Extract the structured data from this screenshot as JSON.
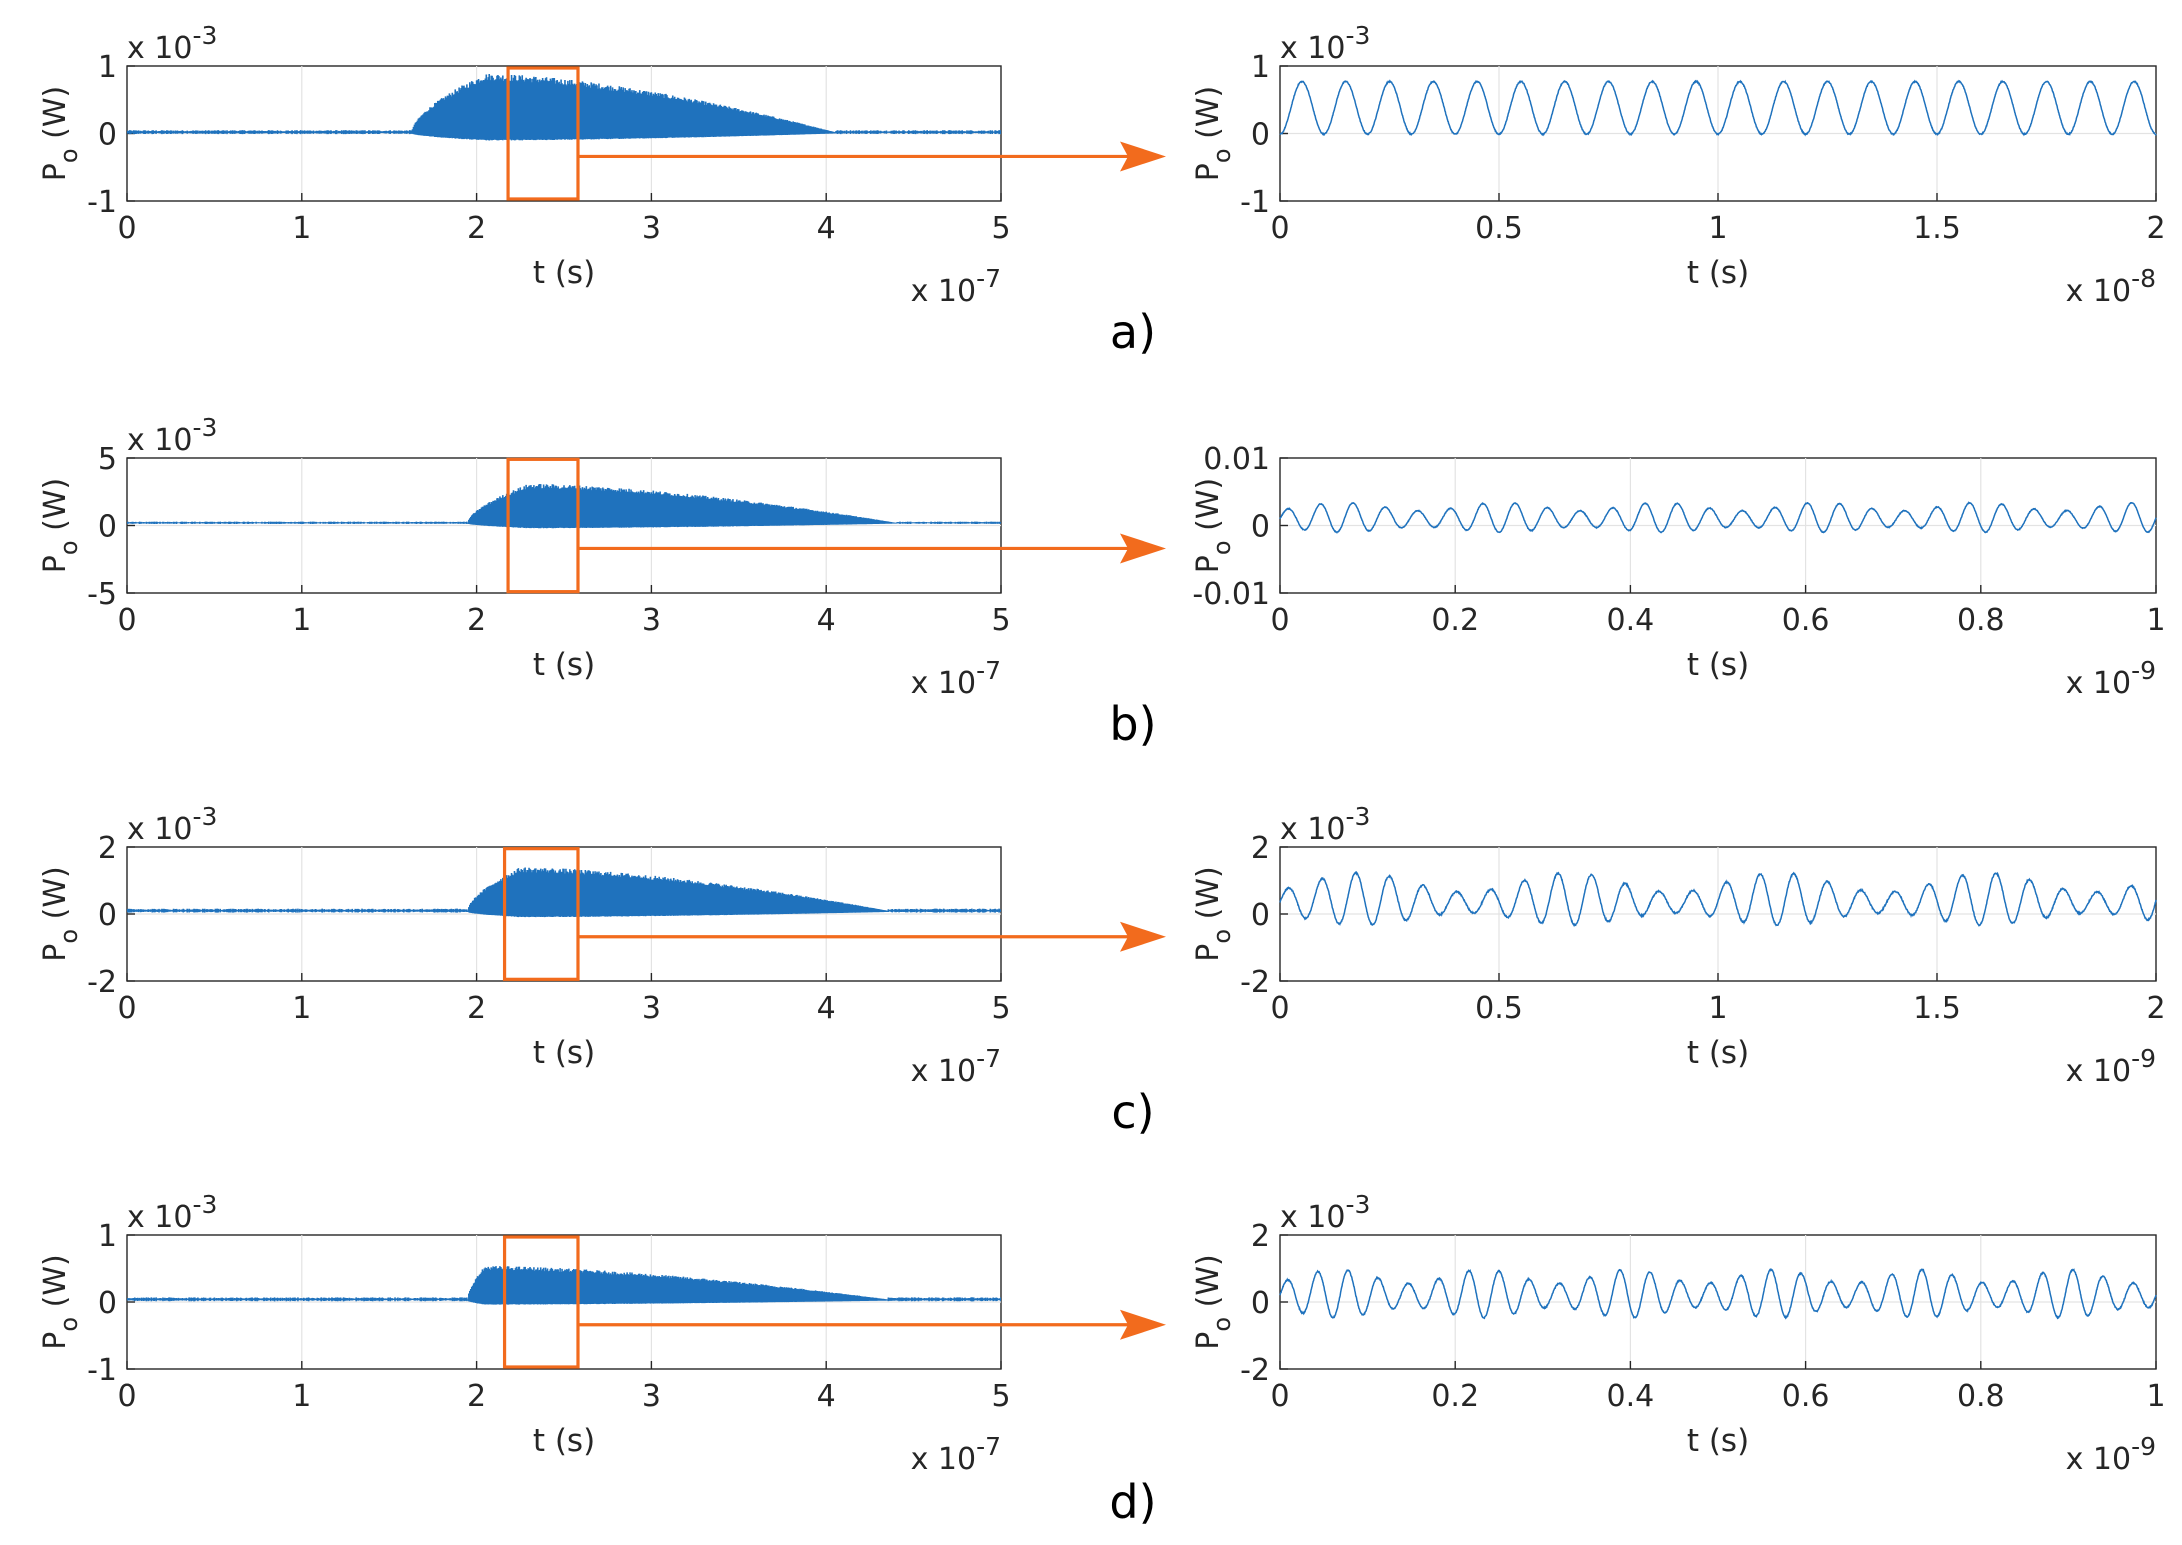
{
  "figure": {
    "colors": {
      "signal": "#1f72bd",
      "signal_light": "#8fb8dd",
      "zoom_box": "#f26b1d",
      "axis": "#262626",
      "grid": "#e3e3e3"
    }
  },
  "chart_data": [
    {
      "id": "a",
      "panel_label": "a)",
      "left": {
        "type": "line",
        "xlabel": "t (s)",
        "ylabel_main": "P",
        "ylabel_sub": "o",
        "ylabel_unit": " (W)",
        "xlim": [
          0,
          5
        ],
        "ylim": [
          -1,
          1
        ],
        "xticks": [
          "0",
          "1",
          "2",
          "3",
          "4",
          "5"
        ],
        "xtick_values": [
          0,
          1,
          2,
          3,
          4,
          5
        ],
        "yticks": [
          "-1",
          "0",
          "1"
        ],
        "ytick_values": [
          -1,
          0,
          1
        ],
        "x_multiplier": "x 10",
        "x_exponent": "-7",
        "y_multiplier": "x 10",
        "y_exponent": "-3",
        "signal": {
          "onset": 1.63,
          "peak_time": 2.05,
          "peak_max": 0.87,
          "end": 4.05,
          "baseline": 0.02,
          "noise": 0.02
        },
        "zoom_window": {
          "x": [
            2.18,
            2.58
          ],
          "y": [
            -0.97,
            0.97
          ]
        }
      },
      "right": {
        "type": "line",
        "xlabel": "t (s)",
        "ylabel_main": "P",
        "ylabel_sub": "o",
        "ylabel_unit": " (W)",
        "xlim": [
          0,
          2
        ],
        "ylim": [
          -1,
          1
        ],
        "xticks": [
          "0",
          "0.5",
          "1",
          "1.5",
          "2"
        ],
        "xtick_values": [
          0,
          0.5,
          1,
          1.5,
          2
        ],
        "yticks": [
          "-1",
          "0",
          "1"
        ],
        "ytick_values": [
          -1,
          0,
          1
        ],
        "x_multiplier": "x 10",
        "x_exponent": "-8",
        "y_multiplier": "x 10",
        "y_exponent": "-3",
        "signal": {
          "kind": "periodic",
          "cycles": 20,
          "offset": 0.38,
          "amplitude": 0.39
        }
      }
    },
    {
      "id": "b",
      "panel_label": "b)",
      "left": {
        "type": "line",
        "xlabel": "t (s)",
        "ylabel_main": "P",
        "ylabel_sub": "o",
        "ylabel_unit": " (W)",
        "xlim": [
          0,
          5
        ],
        "ylim": [
          -5,
          5
        ],
        "xticks": [
          "0",
          "1",
          "2",
          "3",
          "4",
          "5"
        ],
        "xtick_values": [
          0,
          1,
          2,
          3,
          4,
          5
        ],
        "yticks": [
          "-5",
          "0",
          "5"
        ],
        "ytick_values": [
          -5,
          0,
          5
        ],
        "x_multiplier": "x 10",
        "x_exponent": "-7",
        "y_multiplier": "x 10",
        "y_exponent": "-3",
        "signal": {
          "onset": 1.95,
          "peak_time": 2.3,
          "peak_max": 2.9,
          "end": 4.4,
          "baseline": 0.2,
          "noise": 0.06
        },
        "zoom_window": {
          "x": [
            2.18,
            2.58
          ],
          "y": [
            -4.9,
            4.9
          ]
        }
      },
      "right": {
        "type": "line",
        "xlabel": "t (s)",
        "ylabel_main": "P",
        "ylabel_sub": "o",
        "ylabel_unit": " (W)",
        "xlim": [
          0,
          1
        ],
        "ylim": [
          -0.01,
          0.01
        ],
        "xticks": [
          "0",
          "0.2",
          "0.4",
          "0.6",
          "0.8",
          "1"
        ],
        "xtick_values": [
          0,
          0.2,
          0.4,
          0.6,
          0.8,
          1
        ],
        "yticks": [
          "-0.01",
          "0",
          "0.01"
        ],
        "ytick_values": [
          -0.01,
          0,
          0.01
        ],
        "x_multiplier": "x 10",
        "x_exponent": "-9",
        "signal": {
          "kind": "beating",
          "cycles": 27,
          "beat_cycles": 5.5,
          "offset": 0.0012,
          "amplitude": 0.0022,
          "mod_depth": 0.45
        }
      }
    },
    {
      "id": "c",
      "panel_label": "c)",
      "left": {
        "type": "line",
        "xlabel": "t (s)",
        "ylabel_main": "P",
        "ylabel_sub": "o",
        "ylabel_unit": " (W)",
        "xlim": [
          0,
          5
        ],
        "ylim": [
          -2,
          2
        ],
        "xticks": [
          "0",
          "1",
          "2",
          "3",
          "4",
          "5"
        ],
        "xtick_values": [
          0,
          1,
          2,
          3,
          4,
          5
        ],
        "yticks": [
          "-2",
          "0",
          "2"
        ],
        "ytick_values": [
          -2,
          0,
          2
        ],
        "x_multiplier": "x 10",
        "x_exponent": "-7",
        "y_multiplier": "x 10",
        "y_exponent": "-3",
        "signal": {
          "onset": 1.95,
          "peak_time": 2.25,
          "peak_max": 1.3,
          "end": 4.35,
          "baseline": 0.1,
          "noise": 0.04
        },
        "zoom_window": {
          "x": [
            2.16,
            2.58
          ],
          "y": [
            -1.95,
            1.95
          ]
        }
      },
      "right": {
        "type": "line",
        "xlabel": "t (s)",
        "ylabel_main": "P",
        "ylabel_sub": "o",
        "ylabel_unit": " (W)",
        "xlim": [
          0,
          2
        ],
        "ylim": [
          -2,
          2
        ],
        "xticks": [
          "0",
          "0.5",
          "1",
          "1.5",
          "2"
        ],
        "xtick_values": [
          0,
          0.5,
          1,
          1.5,
          2
        ],
        "yticks": [
          "-2",
          "0",
          "2"
        ],
        "ytick_values": [
          -2,
          0,
          2
        ],
        "x_multiplier": "x 10",
        "x_exponent": "-9",
        "y_multiplier": "x 10",
        "y_exponent": "-3",
        "signal": {
          "kind": "beating",
          "cycles": 26,
          "beat_cycles": 4.2,
          "offset": 0.45,
          "amplitude": 0.78,
          "mod_depth": 0.6
        }
      }
    },
    {
      "id": "d",
      "panel_label": "d)",
      "left": {
        "type": "line",
        "xlabel": "t (s)",
        "ylabel_main": "P",
        "ylabel_sub": "o",
        "ylabel_unit": " (W)",
        "xlim": [
          0,
          5
        ],
        "ylim": [
          -1,
          1
        ],
        "xticks": [
          "0",
          "1",
          "2",
          "3",
          "4",
          "5"
        ],
        "xtick_values": [
          0,
          1,
          2,
          3,
          4,
          5
        ],
        "yticks": [
          "-1",
          "0",
          "1"
        ],
        "ytick_values": [
          -1,
          0,
          1
        ],
        "x_multiplier": "x 10",
        "x_exponent": "-7",
        "y_multiplier": "x 10",
        "y_exponent": "-3",
        "signal": {
          "onset": 1.95,
          "peak_time": 2.05,
          "peak_max": 0.5,
          "end": 4.35,
          "baseline": 0.04,
          "noise": 0.02
        },
        "zoom_window": {
          "x": [
            2.16,
            2.58
          ],
          "y": [
            -0.97,
            0.97
          ]
        }
      },
      "right": {
        "type": "line",
        "xlabel": "t (s)",
        "ylabel_main": "P",
        "ylabel_sub": "o",
        "ylabel_unit": " (W)",
        "xlim": [
          0,
          1
        ],
        "ylim": [
          -2,
          2
        ],
        "xticks": [
          "0",
          "0.2",
          "0.4",
          "0.6",
          "0.8",
          "1"
        ],
        "xtick_values": [
          0,
          0.2,
          0.4,
          0.6,
          0.8,
          1
        ],
        "yticks": [
          "-2",
          "0",
          "2"
        ],
        "ytick_values": [
          -2,
          0,
          2
        ],
        "x_multiplier": "x 10",
        "x_exponent": "-9",
        "y_multiplier": "x 10",
        "y_exponent": "-3",
        "signal": {
          "kind": "beating",
          "cycles": 29,
          "beat_cycles": 6,
          "offset": 0.25,
          "amplitude": 0.72,
          "mod_depth": 0.5
        }
      }
    }
  ]
}
